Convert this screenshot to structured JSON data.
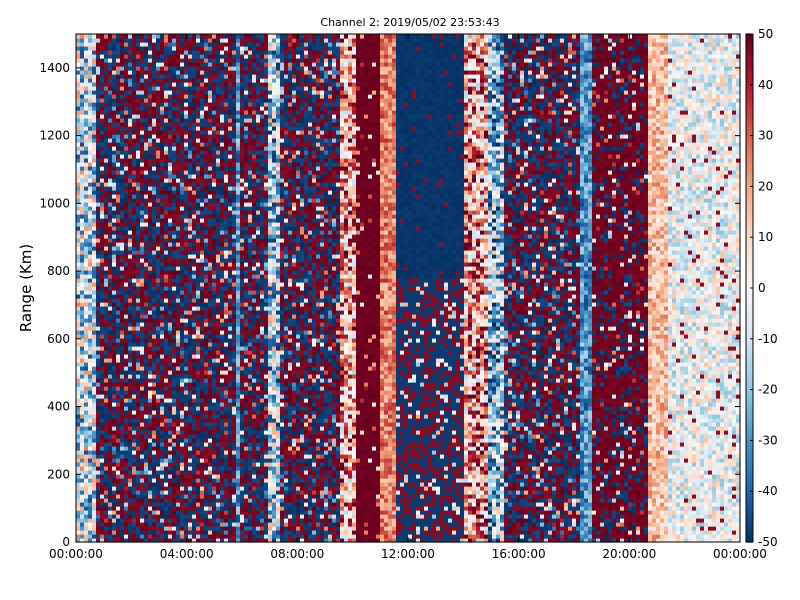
{
  "chart_data": {
    "type": "heatmap",
    "title": "Channel 2: 2019/05/02 23:53:43",
    "xlabel": "",
    "ylabel": "Range (Km)",
    "xlim": [
      "00:00:00",
      "24:00:00"
    ],
    "ylim": [
      0,
      1500
    ],
    "x_ticks": [
      "00:00:00",
      "04:00:00",
      "08:00:00",
      "12:00:00",
      "16:00:00",
      "20:00:00",
      "00:00:00"
    ],
    "y_ticks": [
      0,
      200,
      400,
      600,
      800,
      1000,
      1200,
      1400
    ],
    "colorbar": {
      "min": -50,
      "max": 50,
      "ticks": [
        -50,
        -40,
        -30,
        -20,
        -10,
        0,
        10,
        20,
        30,
        40,
        50
      ],
      "colormap": "RdBu_r",
      "colors": [
        "#053061",
        "#2166ac",
        "#4393c3",
        "#92c5de",
        "#d1e5f0",
        "#f7f7f7",
        "#fddbc7",
        "#f4a582",
        "#d6604d",
        "#b2182b",
        "#67001f"
      ]
    },
    "grid": false,
    "regions": [
      {
        "from": "00:00:00",
        "to": "00:40:00",
        "pattern": "mixed",
        "mean": -10
      },
      {
        "from": "00:40:00",
        "to": "05:50:00",
        "pattern": "noise",
        "mean": 0
      },
      {
        "from": "05:50:00",
        "to": "06:00:00",
        "pattern": "stripe",
        "mean": -30
      },
      {
        "from": "06:00:00",
        "to": "07:00:00",
        "pattern": "noise",
        "mean": 5
      },
      {
        "from": "07:00:00",
        "to": "07:20:00",
        "pattern": "mixed",
        "mean": -15
      },
      {
        "from": "07:20:00",
        "to": "09:30:00",
        "pattern": "noise",
        "mean": 0
      },
      {
        "from": "09:30:00",
        "to": "10:10:00",
        "pattern": "mixed",
        "mean": 20
      },
      {
        "from": "10:10:00",
        "to": "11:00:00",
        "pattern": "solid",
        "mean": 48
      },
      {
        "from": "11:00:00",
        "to": "11:30:00",
        "pattern": "gradient",
        "mean": 25
      },
      {
        "from": "11:30:00",
        "to": "14:00:00",
        "pattern": "low_above",
        "mean": -48,
        "split_range": 780
      },
      {
        "from": "14:00:00",
        "to": "14:50:00",
        "pattern": "mixed",
        "mean": 20
      },
      {
        "from": "14:50:00",
        "to": "15:30:00",
        "pattern": "mixed",
        "mean": -20
      },
      {
        "from": "15:30:00",
        "to": "18:10:00",
        "pattern": "noise",
        "mean": -15
      },
      {
        "from": "18:10:00",
        "to": "18:40:00",
        "pattern": "stripe",
        "mean": -30
      },
      {
        "from": "18:40:00",
        "to": "20:40:00",
        "pattern": "solid_noise",
        "mean": 40
      },
      {
        "from": "20:40:00",
        "to": "21:20:00",
        "pattern": "gradient",
        "mean": 15
      },
      {
        "from": "21:20:00",
        "to": "24:00:00",
        "pattern": "faint",
        "mean": -3
      }
    ]
  }
}
